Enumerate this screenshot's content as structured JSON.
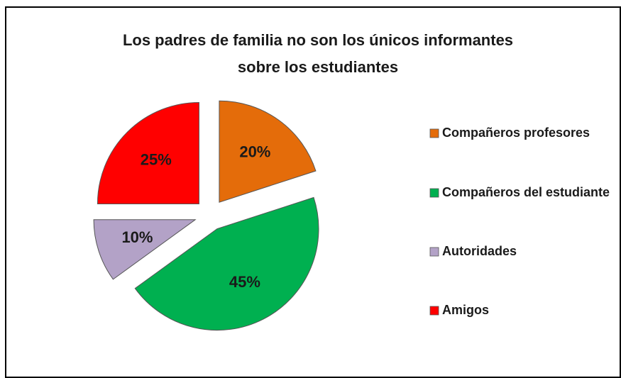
{
  "chart_data": {
    "type": "pie",
    "title": [
      "Los padres de familia no son los únicos informantes",
      "sobre los estudiantes"
    ],
    "categories": [
      "Compañeros profesores",
      "Compañeros del estudiante",
      "Autoridades",
      "Amigos"
    ],
    "values": [
      20,
      45,
      10,
      25
    ],
    "value_labels": [
      "20%",
      "45%",
      "10%",
      "25%"
    ],
    "colors": [
      "#e46c0a",
      "#00b050",
      "#b3a2c7",
      "#ff0000"
    ],
    "legend": "right"
  }
}
